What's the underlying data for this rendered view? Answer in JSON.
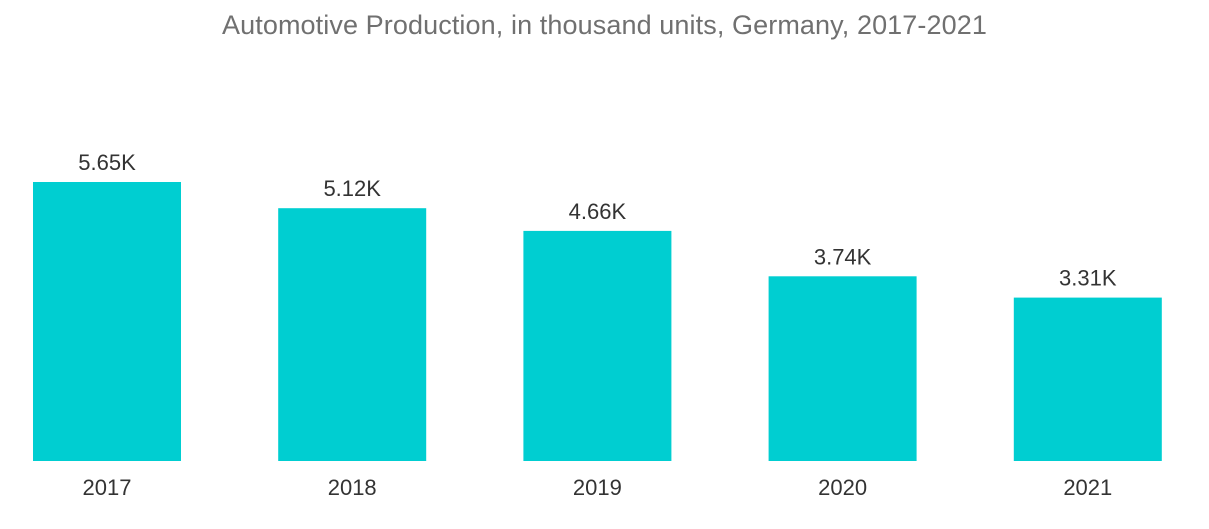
{
  "chart_data": {
    "type": "bar",
    "title": "Automotive Production, in thousand units, Germany, 2017-2021",
    "xlabel": "",
    "ylabel": "",
    "categories": [
      "2017",
      "2018",
      "2019",
      "2020",
      "2021"
    ],
    "values": [
      5.65,
      5.12,
      4.66,
      3.74,
      3.31
    ],
    "data_labels": [
      "5.65K",
      "5.12K",
      "4.66K",
      "3.74K",
      "3.31K"
    ],
    "ylim": [
      0,
      5.65
    ],
    "grid": false,
    "legend": "none",
    "bar_color": "#00CED1"
  }
}
